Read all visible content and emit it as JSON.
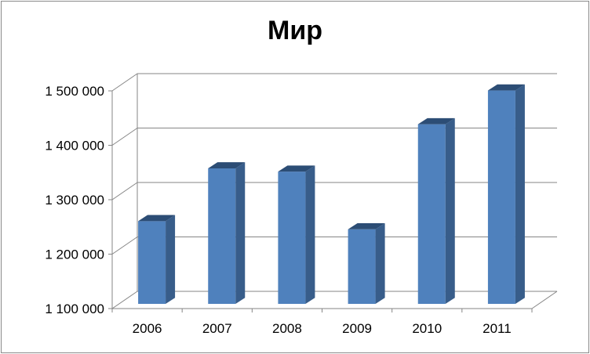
{
  "chart_data": {
    "type": "bar",
    "title": "Мир",
    "categories": [
      "2006",
      "2007",
      "2008",
      "2009",
      "2010",
      "2011"
    ],
    "values": [
      1252000,
      1349000,
      1343000,
      1237000,
      1430000,
      1492000
    ],
    "ylim": [
      1100000,
      1500000
    ],
    "yticks": [
      1100000,
      1200000,
      1300000,
      1400000,
      1500000
    ],
    "ytick_labels": [
      "1 100 000",
      "1 200 000",
      "1 300 000",
      "1 400 000",
      "1 500 000"
    ],
    "grid": true,
    "legend": "none",
    "colors": {
      "front": "#4F81BD",
      "side": "#385D8A",
      "top": "#2C4D75",
      "grid": "#868686"
    }
  }
}
